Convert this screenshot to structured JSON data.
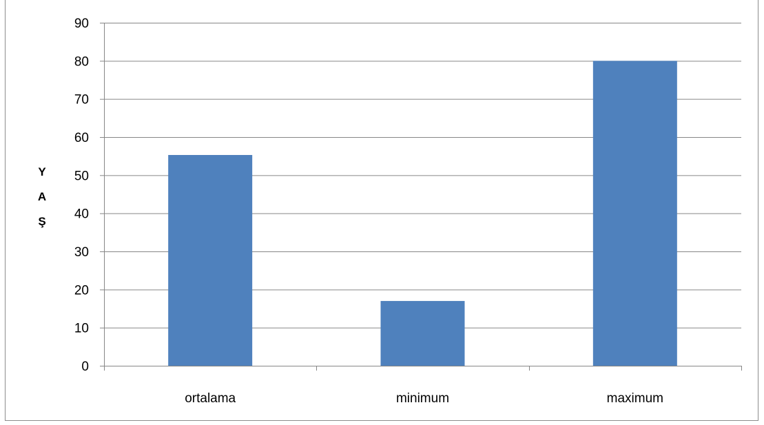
{
  "colors": {
    "bar": "#4f81bd",
    "grid": "#868686",
    "axis": "#868686",
    "frame": "#8c8c8c",
    "background": "#ffffff"
  },
  "chart_data": {
    "type": "bar",
    "title": "",
    "xlabel": "",
    "ylabel": "Y A Ş",
    "ylabel_letters": [
      "Y",
      "A",
      "Ş"
    ],
    "categories": [
      "ortalama",
      "minimum",
      "maximum"
    ],
    "values": [
      55.3,
      17,
      80
    ],
    "ylim": [
      0,
      90
    ],
    "yticks": [
      0,
      10,
      20,
      30,
      40,
      50,
      60,
      70,
      80,
      90
    ],
    "grid": true,
    "legend": false
  }
}
